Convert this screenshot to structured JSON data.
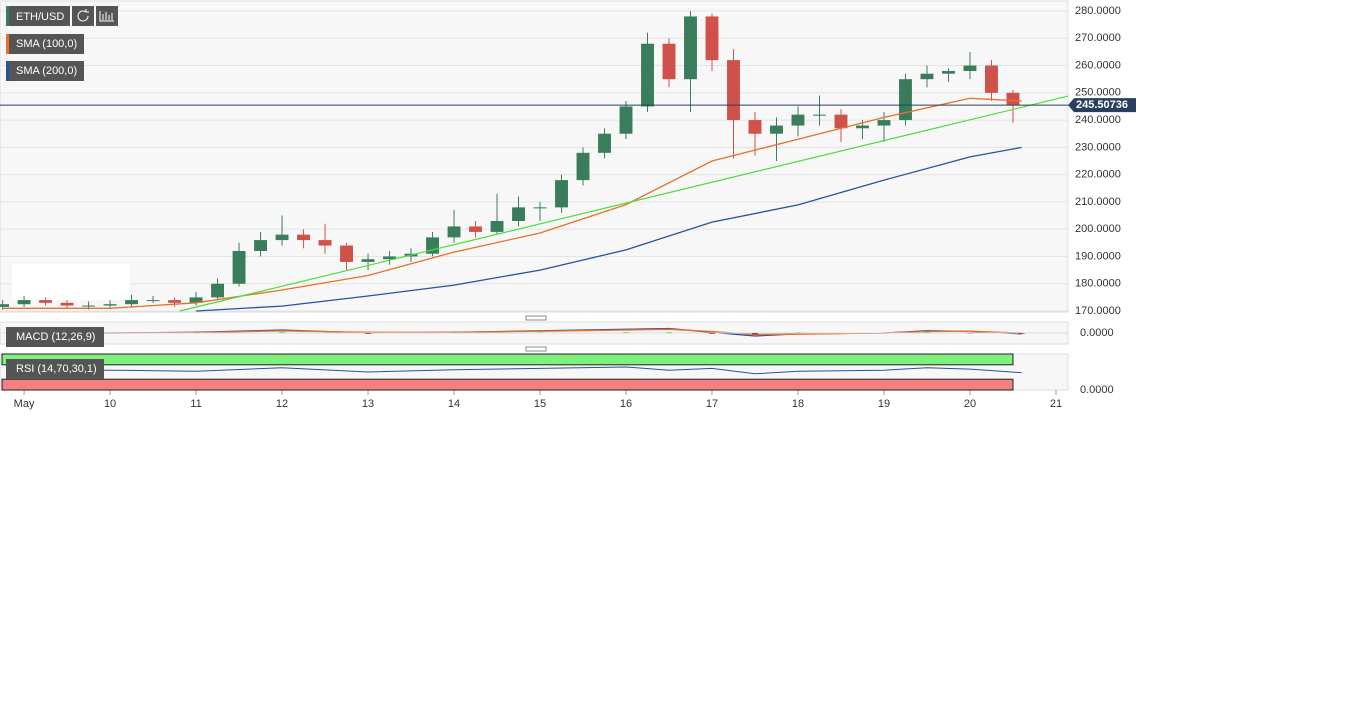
{
  "chart_data": {
    "type": "candlestick",
    "symbol": "ETH/USD",
    "x": [
      8.75,
      9,
      9.25,
      9.5,
      9.75,
      10,
      10.25,
      10.5,
      10.75,
      11,
      11.25,
      11.5,
      11.75,
      12,
      12.25,
      12.5,
      12.75,
      13,
      13.25,
      13.5,
      13.75,
      14,
      14.25,
      14.5,
      14.75,
      15,
      15.25,
      15.5,
      15.75,
      16,
      16.25,
      16.5,
      16.75,
      17,
      17.25,
      17.5,
      17.75,
      18,
      18.25,
      18.5,
      18.75,
      19,
      19.25,
      19.5,
      19.75,
      20,
      20.25,
      20.5
    ],
    "open": [
      171.5,
      172.5,
      174,
      173,
      172,
      172,
      172.5,
      174,
      174,
      173,
      175,
      180,
      192,
      196,
      198,
      196,
      194,
      188,
      189,
      190,
      191,
      197,
      201,
      199,
      203,
      208,
      208,
      218,
      228,
      235,
      245,
      268,
      255,
      278,
      262,
      240,
      235,
      238,
      242,
      242,
      237,
      238,
      240,
      255,
      257,
      258,
      260,
      250
    ],
    "high": [
      174,
      175.5,
      175,
      174,
      173.5,
      174,
      176,
      175.5,
      175,
      177,
      182,
      195,
      199,
      205,
      200,
      202,
      195,
      191,
      192,
      193,
      199,
      207,
      203,
      213,
      212,
      210,
      220,
      230,
      237,
      247,
      272,
      270,
      280,
      279,
      266,
      243,
      241,
      245,
      249,
      244,
      240,
      243,
      257,
      260,
      259,
      265,
      262,
      251
    ],
    "low": [
      170.5,
      171.5,
      172,
      171,
      170.5,
      171,
      171.5,
      173,
      171.5,
      172,
      174,
      179,
      190,
      194,
      193,
      191,
      185,
      185,
      187,
      188,
      190,
      195,
      197,
      198,
      201,
      203,
      206,
      216,
      226,
      233,
      243,
      252,
      243,
      258,
      226,
      227,
      225,
      234,
      238,
      232,
      233,
      232,
      238,
      252,
      254,
      255,
      247,
      239
    ],
    "close": [
      172.5,
      174,
      173,
      172,
      172,
      172.5,
      174,
      174,
      173,
      175,
      180,
      192,
      196,
      198,
      196,
      194,
      188,
      189,
      190,
      191,
      197,
      201,
      199,
      203,
      208,
      208,
      218,
      228,
      235,
      245,
      268,
      255,
      278,
      262,
      240,
      235,
      238,
      242,
      242,
      237,
      238,
      240,
      255,
      257,
      258,
      260,
      250,
      245.5
    ],
    "up_color": "#3a7d5c",
    "down_color": "#d0504a",
    "series": [
      {
        "name": "SMA (100,0)",
        "color": "#e8702a",
        "x": [
          8.75,
          10,
          11,
          12,
          13,
          14,
          15,
          16,
          17,
          18,
          19,
          20,
          20.6
        ],
        "values": [
          171,
          171,
          173,
          177.7,
          183,
          191.6,
          198.6,
          209,
          225,
          233,
          241,
          248,
          247
        ]
      },
      {
        "name": "SMA (200,0)",
        "color": "#2453a3",
        "x": [
          11,
          12,
          13,
          14,
          15,
          16,
          17,
          18,
          19,
          20,
          20.6
        ],
        "values": [
          170,
          171.8,
          175.5,
          179.5,
          185,
          192.4,
          202.6,
          208.9,
          218,
          226.5,
          230
        ]
      }
    ],
    "trendline": {
      "color": "#4cdc3c",
      "x": [
        10.81,
        21.14
      ],
      "values": [
        170,
        248.8
      ]
    },
    "last_price": 245.50736,
    "xlim": [
      8.72,
      21.14
    ],
    "xticks": [
      {
        "value": 9,
        "label": "May"
      },
      10,
      11,
      12,
      13,
      14,
      15,
      16,
      17,
      18,
      19,
      20,
      21
    ],
    "ylim": [
      170,
      280
    ],
    "yticks": [
      {
        "value": 170,
        "label": "170.0000"
      },
      {
        "value": 180,
        "label": "180.0000"
      },
      {
        "value": 190,
        "label": "190.0000"
      },
      {
        "value": 200,
        "label": "200.0000"
      },
      {
        "value": 210,
        "label": "210.0000"
      },
      {
        "value": 220,
        "label": "220.0000"
      },
      {
        "value": 230,
        "label": "230.0000"
      },
      {
        "value": 240,
        "label": "240.0000"
      },
      {
        "value": 250,
        "label": "250.0000"
      },
      {
        "value": 260,
        "label": "260.0000"
      },
      {
        "value": 270,
        "label": "270.0000"
      },
      {
        "value": 280,
        "label": "280.0000"
      }
    ],
    "grid": true,
    "macd": {
      "name": "MACD (12,26,9)",
      "x": [
        9,
        10,
        11,
        12,
        13,
        14,
        15,
        16,
        16.5,
        17,
        17.5,
        18,
        19,
        19.5,
        20,
        20.6
      ],
      "macd": [
        0,
        0,
        0.5,
        2,
        0,
        0.5,
        1.5,
        2.5,
        3,
        0.5,
        -2,
        -0.5,
        0,
        1.5,
        1,
        -0.5
      ],
      "signal": [
        0,
        0,
        0.3,
        1.5,
        0.5,
        0.4,
        1.2,
        2,
        2.5,
        1,
        -1,
        -0.8,
        0,
        1,
        1.2,
        0
      ],
      "ylim": [
        -6,
        6
      ],
      "yticks": [
        {
          "value": 0,
          "label": "0.0000"
        }
      ]
    },
    "rsi": {
      "name": "RSI (14,70,30,1)",
      "x": [
        9,
        10,
        11,
        12,
        13,
        14,
        15,
        16,
        16.5,
        17,
        17.5,
        18,
        19,
        19.5,
        20,
        20.6
      ],
      "values": [
        58,
        55,
        52,
        62,
        50,
        56,
        60,
        64,
        55,
        60,
        45,
        52,
        55,
        62,
        58,
        48
      ],
      "ylim": [
        0,
        100
      ],
      "upper": 70,
      "lower": 30,
      "yticks": [
        {
          "value": 0,
          "label": "0.0000"
        }
      ]
    }
  }
}
